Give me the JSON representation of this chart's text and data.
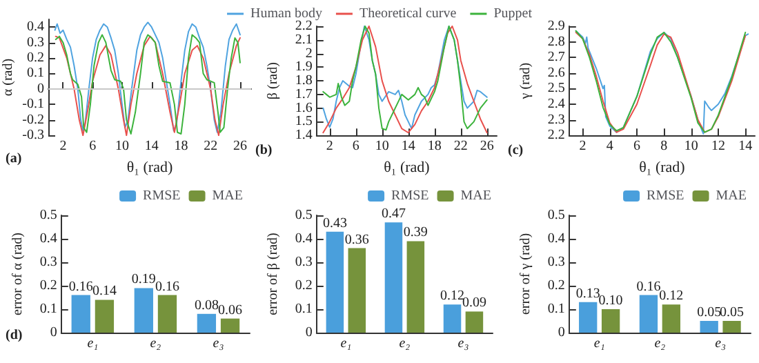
{
  "chart_data": [
    {
      "type": "line",
      "xlabel": "θ₁ (rad)",
      "ylabel": "α (rad)",
      "annotations": [
        "(a)"
      ],
      "legend": "top",
      "xlim": [
        0,
        27.5
      ],
      "xticks": [
        2,
        6,
        10,
        14,
        18,
        22,
        26
      ],
      "ylim": [
        -0.3,
        0.45
      ],
      "yticks": [
        -0.3,
        -0.2,
        -0.1,
        0,
        0.1,
        0.2,
        0.3,
        0.4
      ],
      "ref_lines": [
        {
          "axis": "y",
          "value": 0,
          "color": "#c8c8c8"
        }
      ],
      "series": [
        {
          "name": "Human body",
          "color": "#4fa3e0",
          "x": [
            0.9,
            1.2,
            1.6,
            2,
            2.5,
            3,
            3.5,
            4,
            4.4,
            4.7,
            5,
            5.5,
            6,
            6.5,
            7,
            7.5,
            8,
            8.5,
            9,
            9.5,
            10,
            10.4,
            10.8,
            11.3,
            12,
            12.5,
            13,
            13.5,
            14,
            14.5,
            15,
            15.5,
            16,
            16.5,
            17,
            17.4,
            18,
            18.5,
            19,
            19.5,
            20,
            20.5,
            21,
            21.5,
            22,
            22.5,
            22.9,
            23.4,
            24,
            24.5,
            25,
            25.5,
            26
          ],
          "values": [
            0.38,
            0.42,
            0.36,
            0.38,
            0.32,
            0.27,
            0.15,
            0.0,
            -0.2,
            -0.27,
            -0.22,
            0.0,
            0.2,
            0.32,
            0.38,
            0.42,
            0.4,
            0.33,
            0.25,
            0.1,
            -0.1,
            -0.25,
            -0.2,
            0.0,
            0.25,
            0.35,
            0.4,
            0.43,
            0.4,
            0.35,
            0.3,
            0.2,
            0.05,
            -0.1,
            -0.27,
            -0.22,
            0.05,
            0.25,
            0.37,
            0.42,
            0.4,
            0.33,
            0.27,
            0.15,
            0.0,
            -0.2,
            -0.28,
            -0.15,
            0.15,
            0.32,
            0.38,
            0.42,
            0.35
          ]
        },
        {
          "name": "Theoretical curve",
          "color": "#e8504c",
          "x": [
            1,
            1.5,
            2.5,
            3.5,
            4.2,
            4.7,
            5.3,
            6,
            7,
            7.8,
            8.5,
            9.5,
            10.2,
            10.6,
            11.2,
            12,
            13,
            13.8,
            14.5,
            15.5,
            16.5,
            17.1,
            17.8,
            18.5,
            19.5,
            20.2,
            21,
            22,
            22.6,
            23.1,
            23.7,
            24.5,
            25.5,
            26
          ],
          "values": [
            0.34,
            0.33,
            0.2,
            0.0,
            -0.2,
            -0.3,
            -0.15,
            0.05,
            0.22,
            0.28,
            0.22,
            0.0,
            -0.2,
            -0.3,
            -0.1,
            0.1,
            0.28,
            0.34,
            0.3,
            0.1,
            -0.15,
            -0.28,
            -0.1,
            0.1,
            0.25,
            0.28,
            0.2,
            0.0,
            -0.2,
            -0.3,
            -0.1,
            0.1,
            0.28,
            0.33
          ]
        },
        {
          "name": "Puppet",
          "color": "#3cb33c",
          "x": [
            1,
            1.5,
            2,
            2.5,
            3,
            3.3,
            4,
            4.5,
            4.8,
            5.2,
            5.7,
            6.2,
            6.8,
            7.3,
            7.8,
            8.5,
            9,
            9.8,
            10.2,
            10.6,
            11.2,
            11.8,
            12.5,
            13,
            13.5,
            14,
            14.5,
            15,
            15.5,
            16.5,
            17.1,
            17.5,
            18,
            18.5,
            19,
            19.5,
            20,
            20.5,
            21,
            21.5,
            22.5,
            23,
            23.3,
            23.8,
            24.3,
            24.8,
            25.3,
            25.7,
            26
          ],
          "values": [
            0.32,
            0.34,
            0.3,
            0.22,
            0.1,
            0.06,
            0.03,
            -0.05,
            -0.25,
            -0.28,
            -0.1,
            0.15,
            0.3,
            0.35,
            0.3,
            0.12,
            0.06,
            0.05,
            0.0,
            -0.2,
            -0.29,
            -0.15,
            0.1,
            0.3,
            0.35,
            0.33,
            0.3,
            0.15,
            0.05,
            0.04,
            -0.1,
            -0.28,
            -0.29,
            -0.1,
            0.2,
            0.35,
            0.33,
            0.3,
            0.1,
            0.06,
            0.04,
            -0.15,
            -0.28,
            -0.25,
            0.0,
            0.2,
            0.33,
            0.3,
            0.17
          ]
        }
      ]
    },
    {
      "type": "line",
      "xlabel": "θ₁ (rad)",
      "ylabel": "β (rad)",
      "annotations": [
        "(b)"
      ],
      "xlim": [
        0,
        27.5
      ],
      "xticks": [
        2,
        6,
        10,
        14,
        18,
        22,
        26
      ],
      "ylim": [
        1.4,
        2.2
      ],
      "yticks": [
        1.4,
        1.5,
        1.6,
        1.7,
        1.8,
        1.9,
        2,
        2.1,
        2.2
      ],
      "series": [
        {
          "color": "#4fa3e0",
          "x": [
            1,
            1.5,
            2,
            2.5,
            3,
            3.5,
            4,
            4.5,
            5,
            5.5,
            6,
            6.7,
            7.3,
            8,
            8.5,
            9,
            9.5,
            10,
            11,
            12,
            12.5,
            13,
            13.5,
            14,
            14.5,
            15,
            16,
            17,
            17.5,
            18,
            18.5,
            19.5,
            20.2,
            21,
            21.5,
            22,
            22.5,
            23,
            24,
            24.5,
            25,
            26
          ],
          "values": [
            1.6,
            1.52,
            1.46,
            1.52,
            1.65,
            1.75,
            1.8,
            1.78,
            1.76,
            1.75,
            1.85,
            2.05,
            2.2,
            2.1,
            1.95,
            1.85,
            1.7,
            1.65,
            1.72,
            1.7,
            1.73,
            1.65,
            1.55,
            1.5,
            1.45,
            1.55,
            1.65,
            1.7,
            1.75,
            1.77,
            1.85,
            2.1,
            2.2,
            2.1,
            1.95,
            1.8,
            1.65,
            1.6,
            1.65,
            1.73,
            1.72,
            1.68
          ]
        },
        {
          "color": "#e8504c",
          "x": [
            1,
            2,
            3,
            4,
            5,
            6,
            7,
            8,
            9,
            10,
            11,
            12,
            13,
            14,
            15,
            16,
            17,
            18,
            19,
            20,
            20.7,
            21.5,
            22,
            23,
            24,
            25,
            26
          ],
          "values": [
            1.42,
            1.5,
            1.6,
            1.67,
            1.75,
            1.9,
            2.1,
            2.2,
            2.05,
            1.8,
            1.65,
            1.55,
            1.45,
            1.42,
            1.48,
            1.58,
            1.65,
            1.75,
            1.95,
            2.15,
            2.2,
            2.1,
            1.95,
            1.78,
            1.65,
            1.52,
            1.42
          ]
        },
        {
          "color": "#3cb33c",
          "x": [
            1,
            1.5,
            2,
            3,
            3.3,
            3.8,
            4.3,
            5,
            5.5,
            6,
            6.8,
            7.4,
            8,
            8.5,
            9,
            9.5,
            10,
            10.6,
            11,
            12,
            13,
            14,
            15,
            15.5,
            16,
            16.5,
            17,
            18,
            18.5,
            19.5,
            20.2,
            21,
            21.5,
            22,
            22.5,
            23,
            24,
            25,
            26
          ],
          "values": [
            1.72,
            1.7,
            1.68,
            1.7,
            1.78,
            1.68,
            1.62,
            1.65,
            1.8,
            1.9,
            2.1,
            2.2,
            2.15,
            1.95,
            1.85,
            1.6,
            1.45,
            1.44,
            1.5,
            1.6,
            1.7,
            1.66,
            1.7,
            1.75,
            1.7,
            1.68,
            1.62,
            1.72,
            1.8,
            2.05,
            2.2,
            2.1,
            1.95,
            1.75,
            1.5,
            1.45,
            1.5,
            1.6,
            1.66
          ]
        }
      ]
    },
    {
      "type": "line",
      "xlabel": "θ₁ (rad)",
      "ylabel": "γ (rad)",
      "annotations": [
        "(c)"
      ],
      "xlim": [
        1,
        14.7
      ],
      "xticks": [
        2,
        4,
        6,
        8,
        10,
        12,
        14
      ],
      "ylim": [
        2.2,
        2.9
      ],
      "yticks": [
        2.2,
        2.3,
        2.4,
        2.5,
        2.6,
        2.7,
        2.8,
        2.9
      ],
      "series": [
        {
          "color": "#4fa3e0",
          "x": [
            1.5,
            2,
            2.2,
            2.3,
            2.4,
            3,
            3.5,
            3.6,
            3.7,
            4,
            4.5,
            5,
            6,
            7,
            7.5,
            8,
            8.5,
            9,
            10,
            10.5,
            10.9,
            11,
            11.3,
            11.5,
            12,
            12.5,
            13,
            14,
            14.2
          ],
          "values": [
            2.87,
            2.83,
            2.79,
            2.83,
            2.76,
            2.63,
            2.5,
            2.52,
            2.32,
            2.26,
            2.22,
            2.25,
            2.45,
            2.74,
            2.82,
            2.86,
            2.82,
            2.7,
            2.45,
            2.3,
            2.21,
            2.42,
            2.38,
            2.36,
            2.4,
            2.47,
            2.58,
            2.84,
            2.85
          ]
        },
        {
          "color": "#e8504c",
          "x": [
            1.5,
            2,
            2.5,
            3,
            3.5,
            4,
            4.5,
            5,
            6,
            7,
            7.5,
            8,
            8.5,
            9,
            10,
            10.5,
            11,
            11.5,
            12,
            13,
            14
          ],
          "values": [
            2.86,
            2.82,
            2.72,
            2.58,
            2.42,
            2.28,
            2.22,
            2.24,
            2.4,
            2.65,
            2.78,
            2.85,
            2.83,
            2.73,
            2.45,
            2.3,
            2.22,
            2.24,
            2.32,
            2.55,
            2.84
          ]
        },
        {
          "color": "#3cb33c",
          "x": [
            1.5,
            2,
            2.5,
            3,
            3.5,
            4,
            4.5,
            5,
            6,
            7,
            7.5,
            8,
            8.5,
            9,
            10,
            10.5,
            11,
            11.5,
            12,
            13,
            14
          ],
          "values": [
            2.87,
            2.82,
            2.7,
            2.55,
            2.38,
            2.27,
            2.23,
            2.25,
            2.45,
            2.72,
            2.83,
            2.86,
            2.8,
            2.7,
            2.44,
            2.28,
            2.22,
            2.24,
            2.33,
            2.57,
            2.86
          ]
        }
      ]
    },
    {
      "type": "bar",
      "ylabel": "error of α (rad)",
      "annotations": [
        "(d)"
      ],
      "legend": "top right",
      "categories": [
        "e₁",
        "e₂",
        "e₃"
      ],
      "ylim": [
        0,
        0.5
      ],
      "yticks": [
        0,
        0.1,
        0.2,
        0.3,
        0.4,
        0.5
      ],
      "series": [
        {
          "name": "RMSE",
          "color": "#4a9fdc",
          "values": [
            0.16,
            0.19,
            0.08
          ],
          "value_labels": [
            "0.16",
            "0.19",
            "0.08"
          ]
        },
        {
          "name": "MAE",
          "color": "#76933c",
          "values": [
            0.14,
            0.16,
            0.06
          ],
          "value_labels": [
            "0.14",
            "0.16",
            "0.06"
          ]
        }
      ]
    },
    {
      "type": "bar",
      "ylabel": "error of β (rad)",
      "legend": "top right",
      "categories": [
        "e₁",
        "e₂",
        "e₃"
      ],
      "ylim": [
        0,
        0.5
      ],
      "yticks": [
        0,
        0.1,
        0.2,
        0.3,
        0.4,
        0.5
      ],
      "series": [
        {
          "name": "RMSE",
          "color": "#4a9fdc",
          "values": [
            0.43,
            0.47,
            0.12
          ],
          "value_labels": [
            "0.43",
            "0.47",
            "0.12"
          ]
        },
        {
          "name": "MAE",
          "color": "#76933c",
          "values": [
            0.36,
            0.39,
            0.09
          ],
          "value_labels": [
            "0.36",
            "0.39",
            "0.09"
          ]
        }
      ]
    },
    {
      "type": "bar",
      "ylabel": "error of γ (rad)",
      "legend": "top right",
      "categories": [
        "e₁",
        "e₂",
        "e₃"
      ],
      "ylim": [
        0,
        0.5
      ],
      "yticks": [
        0,
        0.1,
        0.2,
        0.3,
        0.4,
        0.5
      ],
      "series": [
        {
          "name": "RMSE",
          "color": "#4a9fdc",
          "values": [
            0.13,
            0.16,
            0.05
          ],
          "value_labels": [
            "0.13",
            "0.16",
            "0.05"
          ]
        },
        {
          "name": "MAE",
          "color": "#76933c",
          "values": [
            0.1,
            0.12,
            0.05
          ],
          "value_labels": [
            "0.10",
            "0.12",
            "0.05"
          ]
        }
      ]
    }
  ]
}
